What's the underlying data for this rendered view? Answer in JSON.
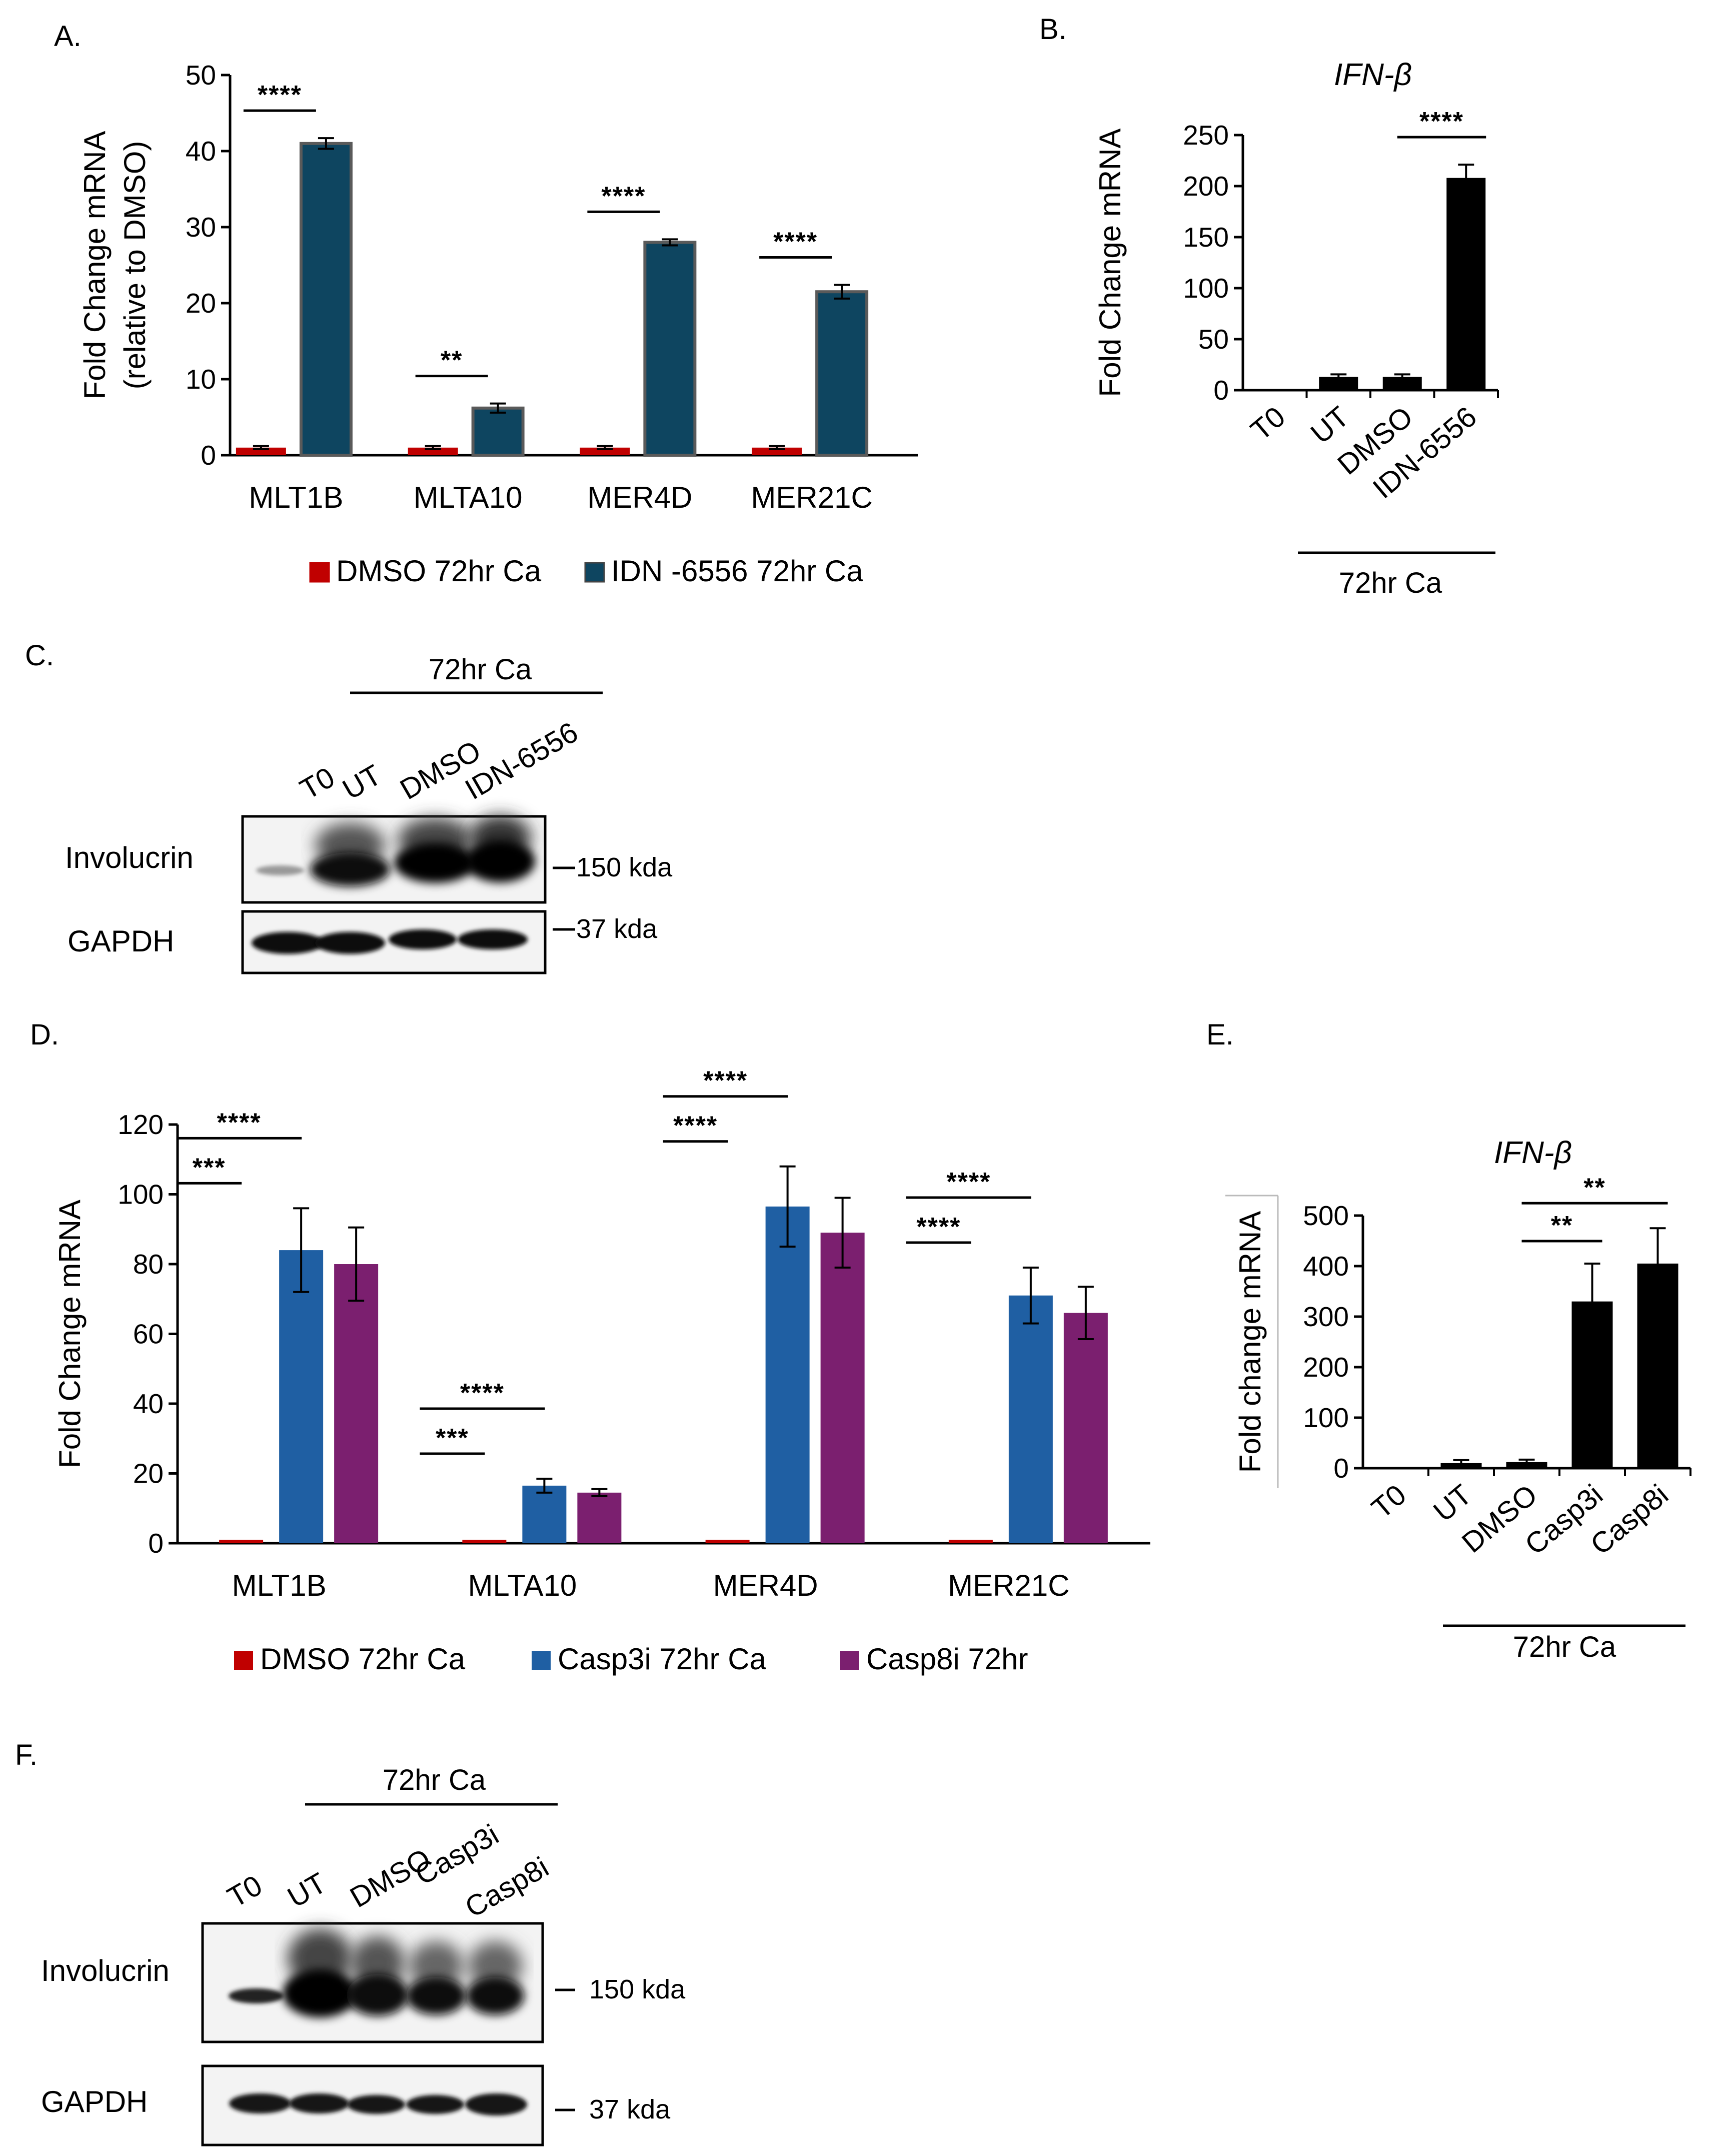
{
  "panels": {
    "A": "A.",
    "B": "B.",
    "C": "C.",
    "D": "D.",
    "E": "E.",
    "F": "F."
  },
  "chart_data": [
    {
      "id": "A",
      "type": "bar",
      "title": "",
      "ylabel": [
        "Fold Change mRNA",
        "(relative to DMSO)"
      ],
      "xlabel": "",
      "ylim": [
        0,
        50
      ],
      "yticks": [
        0,
        10,
        20,
        30,
        40,
        50
      ],
      "categories": [
        "MLT1B",
        "MLTA10",
        "MER4D",
        "MER21C"
      ],
      "series": [
        {
          "name": "DMSO 72hr Ca",
          "color": "#c00000",
          "values": [
            1,
            1,
            1,
            1
          ],
          "errors": [
            0.2,
            0.2,
            0.2,
            0.2
          ]
        },
        {
          "name": "IDN -6556 72hr Ca",
          "color": "#0e4560",
          "values": [
            41,
            6.2,
            28,
            21.5
          ],
          "errors": [
            0.7,
            0.6,
            0.4,
            0.9
          ]
        }
      ],
      "significance": [
        "****",
        "**",
        "****",
        "****"
      ],
      "legend_position": "bottom"
    },
    {
      "id": "B",
      "type": "bar",
      "title": "IFN-β",
      "ylabel": [
        "Fold Change mRNA"
      ],
      "ylim": [
        0,
        250
      ],
      "yticks": [
        0,
        50,
        100,
        150,
        200,
        250
      ],
      "categories": [
        "T0",
        "UT",
        "DMSO",
        "IDN-6556"
      ],
      "values": [
        1,
        13,
        13,
        208
      ],
      "errors": [
        0.5,
        2.5,
        2.5,
        13
      ],
      "color": "#000000",
      "significance": [
        "****"
      ],
      "group_label": "72hr Ca"
    },
    {
      "id": "D",
      "type": "bar",
      "title": "",
      "ylabel": [
        "Fold Change mRNA"
      ],
      "ylim": [
        0,
        120
      ],
      "yticks": [
        0,
        20,
        40,
        60,
        80,
        100,
        120
      ],
      "categories": [
        "MLT1B",
        "MLTA10",
        "MER4D",
        "MER21C"
      ],
      "series": [
        {
          "name": "DMSO 72hr Ca",
          "color": "#c00000",
          "values": [
            1,
            1,
            1,
            1
          ],
          "errors": [
            0,
            0,
            0,
            0
          ]
        },
        {
          "name": "Casp3i 72hr Ca",
          "color": "#1f5fa3",
          "values": [
            84,
            16.5,
            96.5,
            71
          ],
          "errors": [
            12,
            2,
            11.5,
            8
          ]
        },
        {
          "name": "Casp8i 72hr",
          "color": "#7b1f6f",
          "values": [
            80,
            14.5,
            89,
            66
          ],
          "errors": [
            10.5,
            1,
            10,
            7.5
          ]
        }
      ],
      "significance": [
        [
          "***",
          "****"
        ],
        [
          "***",
          "****"
        ],
        [
          "****",
          "****"
        ],
        [
          "****",
          "****"
        ]
      ],
      "legend_position": "bottom"
    },
    {
      "id": "E",
      "type": "bar",
      "title": "IFN-β",
      "ylabel": [
        "Fold change mRNA"
      ],
      "ylim": [
        0,
        500
      ],
      "yticks": [
        0,
        100,
        200,
        300,
        400,
        500
      ],
      "categories": [
        "T0",
        "UT",
        "DMSO",
        "Casp3i",
        "Casp8i"
      ],
      "values": [
        1,
        10,
        12,
        330,
        405
      ],
      "errors": [
        0.5,
        6,
        5,
        75,
        70
      ],
      "color": "#000000",
      "significance": [
        "**",
        "**"
      ],
      "group_label": "72hr Ca"
    }
  ],
  "blots": {
    "C": {
      "group_label": "72hr Ca",
      "lanes": [
        "T0",
        "UT",
        "DMSO",
        "IDN-6556"
      ],
      "rows": [
        "Involucrin",
        "GAPDH"
      ],
      "markers": [
        "150 kda",
        "37 kda"
      ]
    },
    "F": {
      "group_label": "72hr Ca",
      "lanes": [
        "T0",
        "UT",
        "DMSO",
        "Casp3i",
        "Casp8i"
      ],
      "rows": [
        "Involucrin",
        "GAPDH"
      ],
      "markers": [
        "150 kda",
        "37 kda"
      ]
    }
  }
}
